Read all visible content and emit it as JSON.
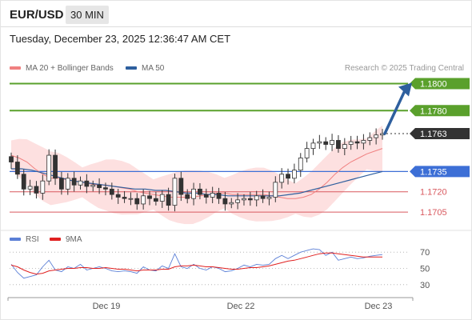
{
  "header": {
    "pair": "EUR/USD",
    "timeframe": "30 MIN",
    "timestamp": "Tuesday, December 23, 2025 12:36:47 AM CET"
  },
  "legend": {
    "ma20_label": "MA 20 + Bollinger Bands",
    "ma20_color": "#f08080",
    "ma50_label": "MA 50",
    "ma50_color": "#2e5f9e",
    "credit": "Research © 2025 Trading Central"
  },
  "rsi_legend": {
    "rsi_label": "RSI",
    "rsi_color": "#5b7fd6",
    "ma_label": "9MA",
    "ma_color": "#e02020"
  },
  "colors": {
    "resistance": "#5aa02c",
    "pivot": "#3d6fd6",
    "support": "#d9595f",
    "last": "#333333",
    "arrow": "#2e5f9e",
    "band_fill": "#fde0e0"
  },
  "chart_data": {
    "type": "candlestick",
    "x_tick_labels": [
      "Dec 19",
      "Dec 22",
      "Dec 23"
    ],
    "price_levels": [
      {
        "label": "1.1800",
        "value": 1.18,
        "kind": "resistance"
      },
      {
        "label": "1.1780",
        "value": 1.178,
        "kind": "resistance"
      },
      {
        "label": "1.1763",
        "value": 1.1763,
        "kind": "last"
      },
      {
        "label": "1.1735",
        "value": 1.1735,
        "kind": "pivot"
      },
      {
        "label": "1.1720",
        "value": 1.172,
        "kind": "support"
      },
      {
        "label": "1.1705",
        "value": 1.1705,
        "kind": "support"
      }
    ],
    "price_ylim": [
      1.1695,
      1.1805
    ],
    "close_path": [
      1.1742,
      1.1733,
      1.1722,
      1.1724,
      1.1719,
      1.1728,
      1.1747,
      1.173,
      1.1722,
      1.173,
      1.1725,
      1.1728,
      1.1724,
      1.1725,
      1.1723,
      1.1722,
      1.1718,
      1.1716,
      1.1715,
      1.1715,
      1.1711,
      1.1717,
      1.1715,
      1.1713,
      1.1718,
      1.171,
      1.173,
      1.1718,
      1.1715,
      1.1722,
      1.1718,
      1.1716,
      1.1719,
      1.1715,
      1.1711,
      1.1712,
      1.1714,
      1.1715,
      1.1714,
      1.1717,
      1.1715,
      1.1716,
      1.1727,
      1.1733,
      1.173,
      1.1736,
      1.1745,
      1.1752,
      1.1756,
      1.1757,
      1.1755,
      1.1758,
      1.1752,
      1.1755,
      1.1757,
      1.1756,
      1.1758,
      1.176,
      1.1762,
      1.1763
    ],
    "ma20_path": [
      1.1747,
      1.1745,
      1.1742,
      1.1737,
      1.1733,
      1.173,
      1.173,
      1.1729,
      1.1728,
      1.1727,
      1.1726,
      1.1725,
      1.1725,
      1.1724,
      1.1723,
      1.1722,
      1.172,
      1.1719,
      1.1718,
      1.1717,
      1.1716,
      1.1716,
      1.1716,
      1.1716,
      1.1717,
      1.1718,
      1.1719,
      1.1719,
      1.1718,
      1.1718,
      1.1718,
      1.1718,
      1.1718,
      1.1717,
      1.1716,
      1.1715,
      1.1715,
      1.1716,
      1.1718,
      1.1722,
      1.1727,
      1.1733,
      1.1738,
      1.1742,
      1.1745,
      1.1748,
      1.175,
      1.1752
    ],
    "ma50_path": [
      1.1737,
      1.1737,
      1.1736,
      1.1734,
      1.1732,
      1.173,
      1.1728,
      1.1727,
      1.1726,
      1.1725,
      1.1724,
      1.1723,
      1.1722,
      1.1722,
      1.1721,
      1.1721,
      1.172,
      1.1719,
      1.1719,
      1.1718,
      1.1718,
      1.1717,
      1.1717,
      1.1717,
      1.1717,
      1.1717,
      1.1717,
      1.1718,
      1.1719,
      1.1721,
      1.1723,
      1.1725,
      1.1727,
      1.1729,
      1.1731,
      1.1733,
      1.1735
    ],
    "forecast_target": 1.18,
    "rsi": {
      "ticks": [
        "70",
        "50",
        "30"
      ],
      "ylim": [
        20,
        80
      ],
      "rsi_values": [
        55,
        45,
        38,
        40,
        42,
        52,
        60,
        48,
        46,
        52,
        50,
        55,
        48,
        50,
        52,
        50,
        47,
        46,
        47,
        46,
        44,
        52,
        48,
        47,
        53,
        50,
        68,
        52,
        50,
        55,
        50,
        48,
        52,
        50,
        46,
        47,
        50,
        54,
        52,
        55,
        54,
        55,
        62,
        66,
        62,
        66,
        70,
        72,
        74,
        73,
        66,
        70,
        60,
        62,
        64,
        62,
        63,
        65,
        66,
        67
      ],
      "ma_values": [
        54,
        52,
        48,
        45,
        43,
        44,
        47,
        48,
        49,
        50,
        50,
        51,
        51,
        50,
        50,
        51,
        50,
        49,
        49,
        48,
        47,
        48,
        48,
        48,
        49,
        49,
        52,
        53,
        53,
        54,
        53,
        52,
        52,
        51,
        50,
        49,
        49,
        50,
        51,
        51,
        52,
        53,
        55,
        57,
        59,
        60,
        62,
        64,
        66,
        68,
        69,
        69,
        68,
        67,
        66,
        65,
        64,
        64,
        64,
        64
      ]
    }
  }
}
